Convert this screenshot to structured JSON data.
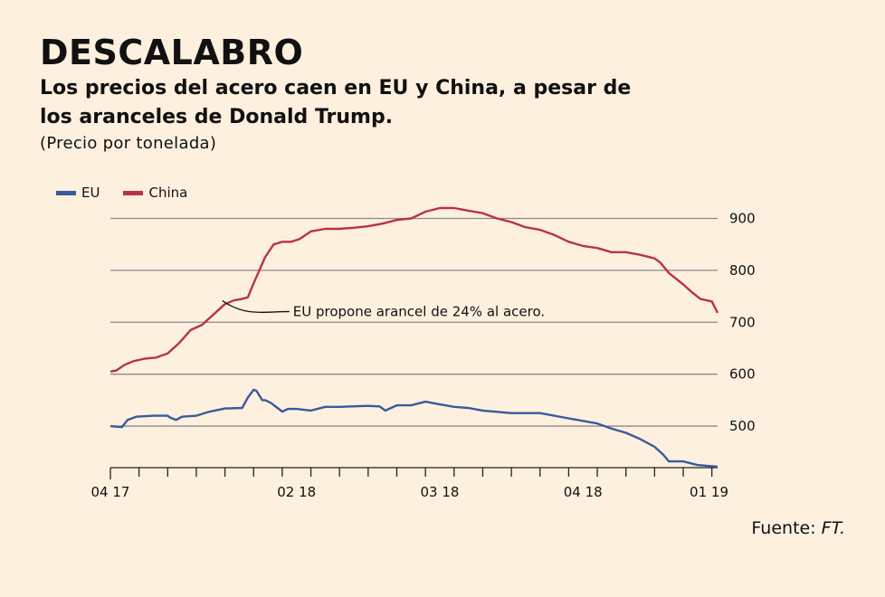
{
  "header": {
    "title": "DESCALABRO",
    "subtitle": "Los precios del acero caen en EU y China, a pesar de los aranceles de Donald Trump.",
    "unit_note": "(Precio por tonelada)"
  },
  "source": {
    "label": "Fuente: ",
    "name": "FT."
  },
  "colors": {
    "eu": "#3a5a9a",
    "china": "#b83347",
    "grid": "#8a8a8a",
    "background": "#fdf0de"
  },
  "chart_data": {
    "type": "line",
    "title": "Los precios del acero caen en EU y China, a pesar de los aranceles de Donald Trump.",
    "ylabel": "(Precio por tonelada)",
    "ylim": [
      420,
      920
    ],
    "yticks": [
      500,
      600,
      700,
      800,
      900
    ],
    "ytick_labels": [
      "500",
      "600",
      "700",
      "800",
      "900"
    ],
    "xlim": [
      0,
      21.2
    ],
    "xticks": [
      0,
      1,
      2,
      3,
      4,
      5,
      6,
      7,
      8,
      9,
      10,
      11,
      12,
      13,
      14,
      15,
      16,
      17,
      18,
      19,
      20,
      21
    ],
    "xtick_labels": [
      {
        "x": 0,
        "label": "04 17"
      },
      {
        "x": 6.5,
        "label": "02 18"
      },
      {
        "x": 11.5,
        "label": "03 18"
      },
      {
        "x": 16.5,
        "label": "04 18"
      },
      {
        "x": 21.2,
        "label": "01 19"
      }
    ],
    "grid": true,
    "legend": "top-left",
    "series": [
      {
        "name": "EU",
        "x": [
          0,
          0.4,
          0.6,
          0.9,
          1.5,
          2.0,
          2.1,
          2.3,
          2.5,
          3.0,
          3.4,
          4.0,
          4.6,
          4.8,
          5.0,
          5.1,
          5.3,
          5.4,
          5.6,
          6.0,
          6.2,
          6.5,
          7.0,
          7.5,
          8.0,
          9.0,
          9.4,
          9.6,
          10.0,
          10.5,
          11.0,
          11.4,
          12.0,
          12.5,
          13.0,
          14.0,
          15.0,
          16.0,
          16.5,
          17.0,
          17.5,
          18.0,
          18.5,
          19.0,
          19.3,
          19.5,
          20.0,
          20.5,
          21.2
        ],
        "values": [
          500,
          498,
          512,
          518,
          520,
          520,
          516,
          512,
          518,
          520,
          527,
          534,
          535,
          555,
          570,
          568,
          550,
          550,
          545,
          528,
          533,
          533,
          530,
          537,
          537,
          539,
          538,
          530,
          540,
          540,
          547,
          543,
          537,
          535,
          530,
          525,
          525,
          515,
          510,
          505,
          495,
          487,
          475,
          460,
          445,
          432,
          432,
          425,
          422
        ]
      },
      {
        "name": "China",
        "x": [
          0,
          0.2,
          0.5,
          0.8,
          1.2,
          1.6,
          2.0,
          2.4,
          2.8,
          3.2,
          3.6,
          4.0,
          4.3,
          4.6,
          4.8,
          5.0,
          5.2,
          5.4,
          5.7,
          6.0,
          6.3,
          6.6,
          7.0,
          7.5,
          8.0,
          8.5,
          9.0,
          9.5,
          10.0,
          10.5,
          11.0,
          11.5,
          12.0,
          12.5,
          13.0,
          13.5,
          14.0,
          14.5,
          15.0,
          15.5,
          16.0,
          16.5,
          17.0,
          17.5,
          18.0,
          18.5,
          19.0,
          19.2,
          19.5,
          20.0,
          20.3,
          20.6,
          21.0,
          21.2
        ],
        "values": [
          605,
          607,
          618,
          625,
          630,
          632,
          640,
          660,
          685,
          695,
          715,
          735,
          742,
          745,
          748,
          775,
          800,
          825,
          850,
          855,
          855,
          860,
          875,
          880,
          880,
          882,
          885,
          890,
          897,
          900,
          913,
          920,
          920,
          915,
          910,
          900,
          893,
          883,
          878,
          868,
          855,
          847,
          843,
          835,
          835,
          830,
          823,
          815,
          795,
          773,
          758,
          745,
          740,
          718
        ]
      }
    ],
    "annotations": [
      {
        "text": "EU propone arancel de 24% al acero.",
        "x": 4.1,
        "y": 745
      }
    ]
  }
}
